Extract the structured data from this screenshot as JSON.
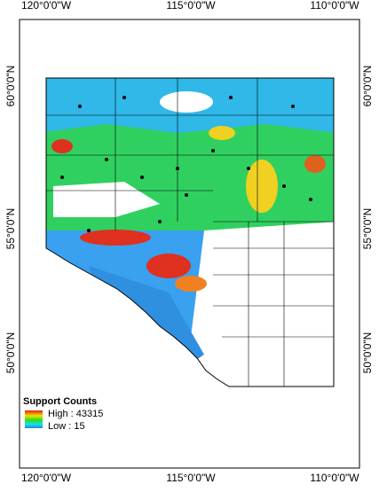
{
  "graticule": {
    "top": [
      "120°0'0\"W",
      "115°0'0\"W",
      "110°0'0\"W"
    ],
    "bottom": [
      "120°0'0\"W",
      "115°0'0\"W",
      "110°0'0\"W"
    ],
    "left": [
      "60°0'0\"N",
      "55°0'0\"N",
      "50°0'0\"N"
    ],
    "right": [
      "60°0'0\"N",
      "55°0'0\"N",
      "50°0'0\"N"
    ]
  },
  "legend": {
    "title": "Support Counts",
    "high": "High : 43315",
    "low": "Low : 15"
  }
}
